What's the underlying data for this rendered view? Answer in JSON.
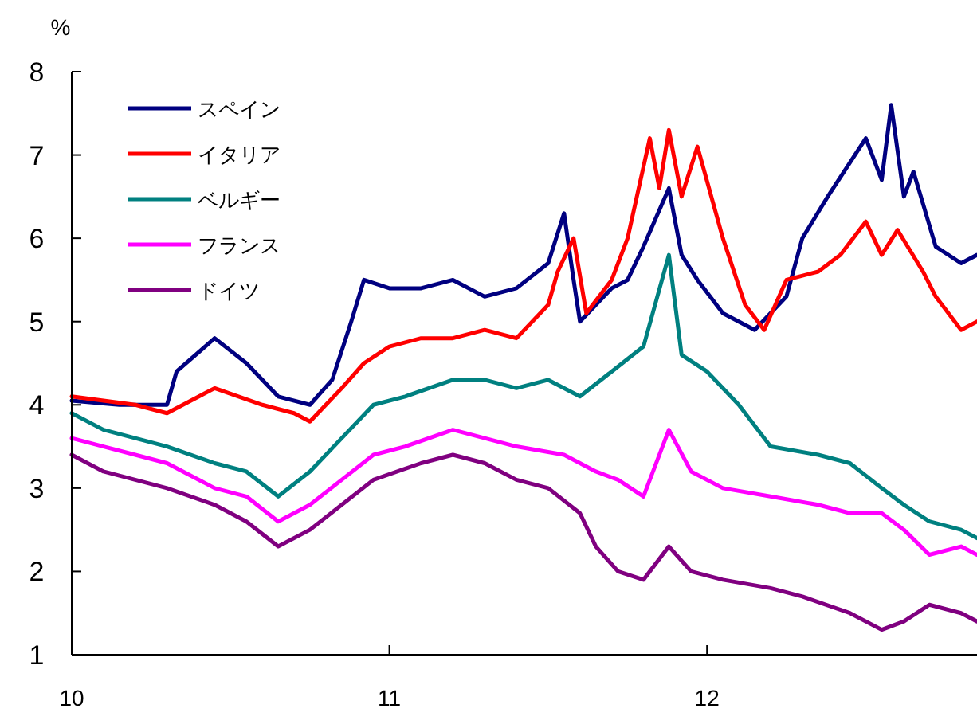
{
  "chart_data": {
    "type": "line",
    "ylabel": "%",
    "xlim": [
      2010,
      2012.85
    ],
    "xticks": [
      {
        "value": 2010,
        "label": "10"
      },
      {
        "value": 2011,
        "label": "11"
      },
      {
        "value": 2012,
        "label": "12"
      }
    ],
    "ylim": [
      1,
      8
    ],
    "yticks": [
      1,
      2,
      3,
      4,
      5,
      6,
      7,
      8
    ],
    "grid": false,
    "legend": "top left",
    "line_style": "solid",
    "marker": "none",
    "series": [
      {
        "name": "スペイン",
        "color": "#000080",
        "x": [
          2010,
          2010.15,
          2010.3,
          2010.33,
          2010.45,
          2010.55,
          2010.65,
          2010.75,
          2010.82,
          2010.88,
          2010.92,
          2011,
          2011.1,
          2011.2,
          2011.3,
          2011.4,
          2011.5,
          2011.55,
          2011.58,
          2011.6,
          2011.65,
          2011.7,
          2011.75,
          2011.8,
          2011.88,
          2011.92,
          2011.97,
          2012.05,
          2012.15,
          2012.25,
          2012.3,
          2012.38,
          2012.5,
          2012.55,
          2012.58,
          2012.62,
          2012.65,
          2012.72,
          2012.8,
          2012.85
        ],
        "values": [
          4.05,
          4.0,
          4.0,
          4.4,
          4.8,
          4.5,
          4.1,
          4.0,
          4.3,
          5.0,
          5.5,
          5.4,
          5.4,
          5.5,
          5.3,
          5.4,
          5.7,
          6.3,
          5.5,
          5.0,
          5.2,
          5.4,
          5.5,
          5.9,
          6.6,
          5.8,
          5.5,
          5.1,
          4.9,
          5.3,
          6.0,
          6.5,
          7.2,
          6.7,
          7.6,
          6.5,
          6.8,
          5.9,
          5.7,
          5.8
        ]
      },
      {
        "name": "イタリア",
        "color": "#ff0000",
        "x": [
          2010,
          2010.2,
          2010.3,
          2010.45,
          2010.6,
          2010.7,
          2010.75,
          2010.85,
          2010.92,
          2011,
          2011.1,
          2011.2,
          2011.3,
          2011.4,
          2011.5,
          2011.53,
          2011.58,
          2011.62,
          2011.7,
          2011.75,
          2011.82,
          2011.85,
          2011.88,
          2011.92,
          2011.97,
          2012.05,
          2012.12,
          2012.18,
          2012.25,
          2012.35,
          2012.42,
          2012.5,
          2012.55,
          2012.6,
          2012.68,
          2012.72,
          2012.8,
          2012.85
        ],
        "values": [
          4.1,
          4.0,
          3.9,
          4.2,
          4.0,
          3.9,
          3.8,
          4.2,
          4.5,
          4.7,
          4.8,
          4.8,
          4.9,
          4.8,
          5.2,
          5.6,
          6.0,
          5.1,
          5.5,
          6.0,
          7.2,
          6.6,
          7.3,
          6.5,
          7.1,
          6.0,
          5.2,
          4.9,
          5.5,
          5.6,
          5.8,
          6.2,
          5.8,
          6.1,
          5.6,
          5.3,
          4.9,
          5.0
        ]
      },
      {
        "name": "ベルギー",
        "color": "#008080",
        "x": [
          2010,
          2010.1,
          2010.2,
          2010.3,
          2010.45,
          2010.55,
          2010.65,
          2010.75,
          2010.85,
          2010.95,
          2011.05,
          2011.2,
          2011.3,
          2011.4,
          2011.5,
          2011.6,
          2011.7,
          2011.8,
          2011.88,
          2011.92,
          2012,
          2012.1,
          2012.2,
          2012.35,
          2012.45,
          2012.55,
          2012.62,
          2012.7,
          2012.8,
          2012.85
        ],
        "values": [
          3.9,
          3.7,
          3.6,
          3.5,
          3.3,
          3.2,
          2.9,
          3.2,
          3.6,
          4.0,
          4.1,
          4.3,
          4.3,
          4.2,
          4.3,
          4.1,
          4.4,
          4.7,
          5.8,
          4.6,
          4.4,
          4.0,
          3.5,
          3.4,
          3.3,
          3.0,
          2.8,
          2.6,
          2.5,
          2.4
        ]
      },
      {
        "name": "フランス",
        "color": "#ff00ff",
        "x": [
          2010,
          2010.1,
          2010.2,
          2010.3,
          2010.45,
          2010.55,
          2010.65,
          2010.75,
          2010.85,
          2010.95,
          2011.05,
          2011.2,
          2011.3,
          2011.4,
          2011.55,
          2011.65,
          2011.72,
          2011.8,
          2011.88,
          2011.95,
          2012.05,
          2012.2,
          2012.35,
          2012.45,
          2012.55,
          2012.62,
          2012.7,
          2012.8,
          2012.85
        ],
        "values": [
          3.6,
          3.5,
          3.4,
          3.3,
          3.0,
          2.9,
          2.6,
          2.8,
          3.1,
          3.4,
          3.5,
          3.7,
          3.6,
          3.5,
          3.4,
          3.2,
          3.1,
          2.9,
          3.7,
          3.2,
          3.0,
          2.9,
          2.8,
          2.7,
          2.7,
          2.5,
          2.2,
          2.3,
          2.2
        ]
      },
      {
        "name": "ドイツ",
        "color": "#800080",
        "x": [
          2010,
          2010.1,
          2010.2,
          2010.3,
          2010.45,
          2010.55,
          2010.65,
          2010.75,
          2010.85,
          2010.95,
          2011.1,
          2011.2,
          2011.3,
          2011.4,
          2011.5,
          2011.6,
          2011.65,
          2011.72,
          2011.8,
          2011.88,
          2011.95,
          2012.05,
          2012.2,
          2012.3,
          2012.45,
          2012.55,
          2012.62,
          2012.7,
          2012.8,
          2012.85
        ],
        "values": [
          3.4,
          3.2,
          3.1,
          3.0,
          2.8,
          2.6,
          2.3,
          2.5,
          2.8,
          3.1,
          3.3,
          3.4,
          3.3,
          3.1,
          3.0,
          2.7,
          2.3,
          2.0,
          1.9,
          2.3,
          2.0,
          1.9,
          1.8,
          1.7,
          1.5,
          1.3,
          1.4,
          1.6,
          1.5,
          1.4
        ]
      }
    ]
  }
}
